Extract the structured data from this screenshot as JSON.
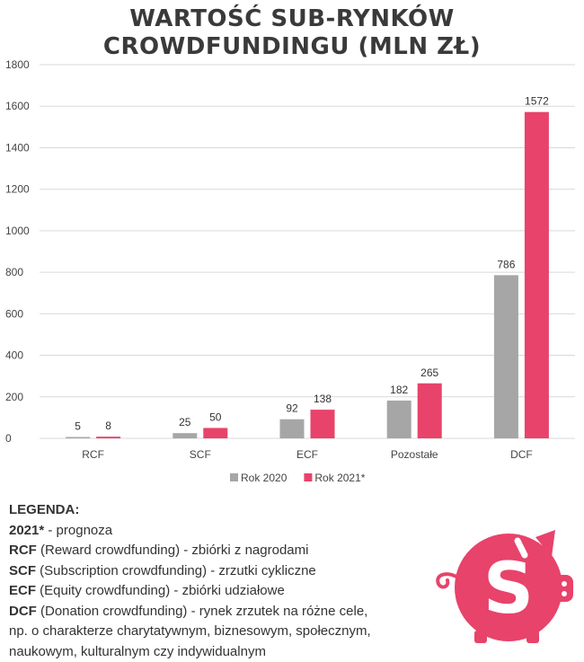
{
  "chart_data": {
    "type": "bar",
    "title_line1": "Wartość sub-rynków",
    "title_line2": "crowdfundingu (mln zł)",
    "categories": [
      "RCF",
      "SCF",
      "ECF",
      "Pozostałe",
      "DCF"
    ],
    "series": [
      {
        "name": "Rok 2020",
        "values": [
          5,
          25,
          92,
          182,
          786
        ],
        "color": "#a6a6a6"
      },
      {
        "name": "Rok 2021*",
        "values": [
          8,
          50,
          138,
          265,
          1572
        ],
        "color": "#e8436a"
      }
    ],
    "ylim": [
      0,
      1800
    ],
    "yticks": [
      0,
      200,
      400,
      600,
      800,
      1000,
      1200,
      1400,
      1600,
      1800
    ],
    "grid": true,
    "legend_position": "bottom-center"
  },
  "legend": {
    "heading": "LEGENDA:",
    "items": [
      {
        "term": "2021*",
        "desc": " - prognoza"
      },
      {
        "term": "RCF",
        "desc": " (Reward crowdfunding) - zbiórki z nagrodami"
      },
      {
        "term": "SCF",
        "desc": " (Subscription crowdfunding) - zrzutki cykliczne"
      },
      {
        "term": "ECF",
        "desc": " (Equity crowdfunding) - zbiórki udziałowe"
      },
      {
        "term": "DCF",
        "desc": " (Donation crowdfunding) - rynek zrzutek na różne cele,"
      }
    ],
    "extra_lines": [
      "np. o charakterze charytatywnym, biznesowym, społecznym,",
      "naukowym, kulturalnym czy indywidualnym"
    ]
  },
  "colors": {
    "accent": "#e8436a",
    "gray": "#a6a6a6",
    "grid": "#d9d9d9"
  },
  "logo": {
    "icon": "piggy-bank-dollar-icon",
    "symbol": "S"
  }
}
